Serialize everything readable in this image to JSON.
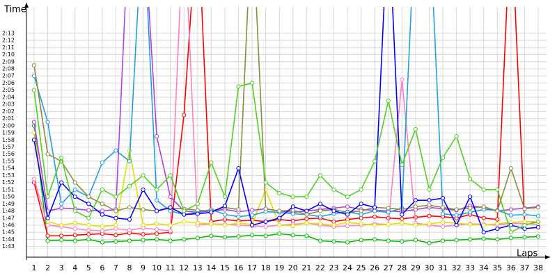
{
  "chart_data": {
    "type": "line",
    "y_label": "Time",
    "x_label": "Laps",
    "categories": [
      "1",
      "2",
      "3",
      "4",
      "5",
      "6",
      "7",
      "8",
      "9",
      "10",
      "11",
      "12",
      "13",
      "14",
      "15",
      "16",
      "17",
      "18",
      "19",
      "20",
      "21",
      "22",
      "23",
      "24",
      "25",
      "26",
      "27",
      "28",
      "29",
      "30",
      "31",
      "32",
      "33",
      "34",
      "35",
      "36",
      "37",
      "38"
    ],
    "ylim": [
      101.5,
      136.7
    ],
    "yticks": [
      {
        "value": 103,
        "label": "1:43"
      },
      {
        "value": 104,
        "label": "1:44"
      },
      {
        "value": 105,
        "label": "1:45"
      },
      {
        "value": 106,
        "label": "1:46"
      },
      {
        "value": 107,
        "label": "1:47"
      },
      {
        "value": 108,
        "label": "1:48"
      },
      {
        "value": 109,
        "label": "1:49"
      },
      {
        "value": 110,
        "label": "1:50"
      },
      {
        "value": 111,
        "label": "1:51"
      },
      {
        "value": 112,
        "label": "1:52"
      },
      {
        "value": 113,
        "label": "1:53"
      },
      {
        "value": 114,
        "label": "1:54"
      },
      {
        "value": 115,
        "label": "1:55"
      },
      {
        "value": 116,
        "label": "1:56"
      },
      {
        "value": 117,
        "label": "1:57"
      },
      {
        "value": 118,
        "label": "1:58"
      },
      {
        "value": 119,
        "label": "1:59"
      },
      {
        "value": 120,
        "label": "2:00"
      },
      {
        "value": 121,
        "label": "2:01"
      },
      {
        "value": 122,
        "label": "2:02"
      },
      {
        "value": 123,
        "label": "2:03"
      },
      {
        "value": 124,
        "label": "2:04"
      },
      {
        "value": 125,
        "label": "2:05"
      },
      {
        "value": 126,
        "label": "2:06"
      },
      {
        "value": 127,
        "label": "2:07"
      },
      {
        "value": 128,
        "label": "2:08"
      },
      {
        "value": 129,
        "label": "2:09"
      },
      {
        "value": 130,
        "label": "2:10"
      },
      {
        "value": 131,
        "label": "2:11"
      },
      {
        "value": 132,
        "label": "2:12"
      },
      {
        "value": 133,
        "label": "2:13"
      }
    ],
    "grid": true,
    "series": [
      {
        "color": "#00c000",
        "values": [
          120,
          103.8,
          103.9,
          103.8,
          104,
          103.6,
          103.7,
          103.8,
          103.9,
          104,
          103.8,
          104,
          104.2,
          104.5,
          104.3,
          104.4,
          104.6,
          104.5,
          104.8,
          104.6,
          104.5,
          103.8,
          103.7,
          103.6,
          103.9,
          104,
          103.8,
          103.7,
          103.9,
          103.5,
          103.8,
          103.9,
          104,
          104.1,
          104,
          104.2,
          104.3,
          104.4
        ]
      },
      {
        "color": "#ff0000",
        "values": [
          112,
          104.5,
          104.5,
          104.6,
          104.7,
          104.8,
          104.6,
          104.9,
          104.7,
          104.8,
          105,
          121.5,
          150,
          106.5,
          106.8,
          106.6,
          106.7,
          106.5,
          106.8,
          106.6,
          106.9,
          107,
          106.5,
          106.8,
          107,
          107.2,
          107,
          106.9,
          107.1,
          107.3,
          107.2,
          107,
          107.5,
          107,
          106.8,
          150,
          106.5,
          106.4
        ]
      },
      {
        "color": "#ff80c0",
        "values": [
          112.5,
          106,
          105.8,
          105.5,
          105.3,
          105.2,
          105.5,
          105.3,
          105.6,
          105.4,
          105.2,
          150,
          106,
          106.2,
          106.1,
          106,
          105.9,
          105.8,
          106,
          106.1,
          106.3,
          106,
          105.8,
          105.9,
          106,
          106.2,
          106.1,
          126.5,
          106.3,
          106,
          105.8,
          106,
          106.2,
          106.1,
          106,
          106.3,
          106.2,
          106.1
        ]
      },
      {
        "color": "#e0e000",
        "values": [
          119,
          106.5,
          106,
          106.3,
          106,
          105.8,
          106,
          116.5,
          106,
          106.2,
          106,
          106.5,
          106.3,
          106.2,
          106,
          106.3,
          106.1,
          111,
          106,
          105.9,
          106.3,
          106.2,
          106,
          106.4,
          106.2,
          106,
          106.1,
          106.3,
          106,
          106.2,
          106.4,
          106.3,
          106.1,
          106,
          106.2,
          106.4,
          106.5,
          106.3
        ]
      },
      {
        "color": "#b040e0",
        "values": [
          120.5,
          108,
          108.4,
          108.3,
          108.1,
          108,
          108.2,
          150,
          150,
          118.5,
          110,
          108,
          107.8,
          108,
          108.2,
          107.9,
          108.1,
          108.3,
          108,
          107.8,
          108,
          108.2,
          108.4,
          108.6,
          108.2,
          108.1,
          108,
          107.9,
          108.2,
          108.5,
          108.3,
          108.1,
          108.7,
          108.5,
          108,
          108.2,
          108.4,
          108.6
        ]
      },
      {
        "color": "#20a0e0",
        "values": [
          127,
          120.5,
          109,
          111,
          110,
          114.8,
          116.5,
          115,
          150,
          109.5,
          108,
          107.5,
          107.8,
          108.2,
          107.5,
          107.2,
          107.4,
          107.9,
          107.8,
          107.6,
          107.5,
          107.2,
          107.6,
          107.9,
          107.5,
          108,
          107.8,
          108.4,
          150,
          150,
          107.6,
          107.4,
          107.8,
          108.2,
          108.1,
          107.4,
          107.5,
          107.3
        ]
      },
      {
        "color": "#8b8b40",
        "values": [
          128.5,
          116,
          115,
          112,
          110,
          109,
          108,
          108.5,
          108.2,
          108,
          108.4,
          108.3,
          108.1,
          108,
          108.5,
          108.2,
          150,
          108.3,
          108,
          108.1,
          107.5,
          108,
          108.2,
          107.8,
          108,
          108.5,
          108.4,
          108.2,
          108.6,
          108.8,
          108.5,
          108.2,
          108.4,
          108.6,
          108,
          114,
          108.3,
          108.5
        ]
      },
      {
        "color": "#0000ff",
        "values": [
          118,
          107,
          112,
          110,
          109,
          107.5,
          107,
          106.8,
          111,
          108,
          108.5,
          107.5,
          107.6,
          107.8,
          108.7,
          114,
          106,
          106.5,
          107,
          108.6,
          108,
          109,
          108,
          107.5,
          109,
          108.5,
          150,
          107.5,
          109.5,
          109.5,
          109.8,
          106,
          110,
          105,
          105.5,
          106,
          105.5,
          105.7
        ]
      },
      {
        "color": "#50d020",
        "values": [
          125,
          110,
          115.5,
          108,
          107,
          111,
          110,
          111.5,
          113,
          111,
          113,
          108,
          109,
          114.8,
          110,
          125.5,
          126,
          112,
          110.5,
          110,
          110,
          113,
          111,
          110,
          111,
          115,
          123.5,
          114.5,
          119.5,
          111,
          115.5,
          118.5,
          112.5,
          111,
          111,
          105,
          106,
          106.5
        ]
      }
    ]
  }
}
